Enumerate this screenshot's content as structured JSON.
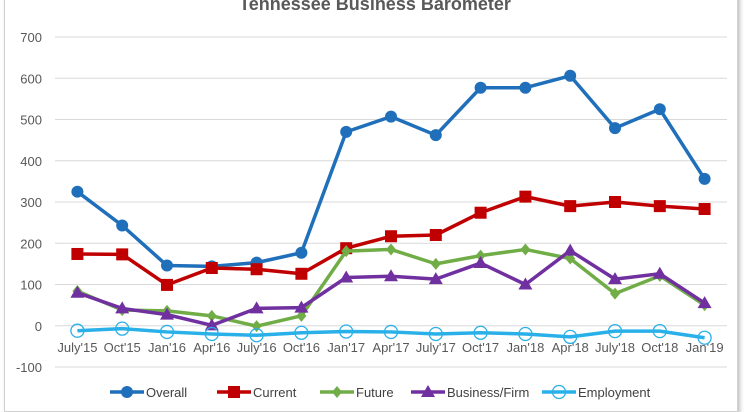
{
  "chart_data": {
    "type": "line",
    "title": "Tennessee Business Barometer",
    "xlabel": "",
    "ylabel": "",
    "ylim": [
      -100,
      700
    ],
    "yticks": [
      -100,
      0,
      100,
      200,
      300,
      400,
      500,
      600,
      700
    ],
    "grid": true,
    "legend_position": "bottom",
    "categories": [
      "July'15",
      "Oct'15",
      "Jan'16",
      "Apr'16",
      "July'16",
      "Oct'16",
      "Jan'17",
      "Apr'17",
      "July'17",
      "Oct'17",
      "Jan'18",
      "Apr'18",
      "July'18",
      "Oct'18",
      "Jan'19"
    ],
    "series": [
      {
        "name": "Overall",
        "color": "#1f6fba",
        "marker": "circle",
        "values": [
          325,
          243,
          146,
          144,
          153,
          177,
          470,
          507,
          462,
          577,
          577,
          606,
          479,
          525,
          356
        ]
      },
      {
        "name": "Current",
        "color": "#c00000",
        "marker": "square",
        "values": [
          174,
          173,
          99,
          140,
          137,
          126,
          188,
          217,
          220,
          274,
          313,
          290,
          300,
          290,
          283
        ]
      },
      {
        "name": "Future",
        "color": "#70ad47",
        "marker": "diamond",
        "values": [
          84,
          38,
          36,
          24,
          -1,
          24,
          181,
          185,
          150,
          170,
          185,
          163,
          78,
          121,
          50
        ]
      },
      {
        "name": "Business/Firm",
        "color": "#7030a0",
        "marker": "triangle",
        "values": [
          80,
          42,
          27,
          1,
          42,
          44,
          117,
          120,
          113,
          152,
          100,
          182,
          113,
          126,
          55
        ]
      },
      {
        "name": "Employment",
        "color": "#2ab0e8",
        "marker": "open-circle",
        "values": [
          -12,
          -7,
          -15,
          -20,
          -23,
          -17,
          -14,
          -15,
          -20,
          -17,
          -20,
          -27,
          -13,
          -13,
          -29
        ]
      }
    ]
  }
}
